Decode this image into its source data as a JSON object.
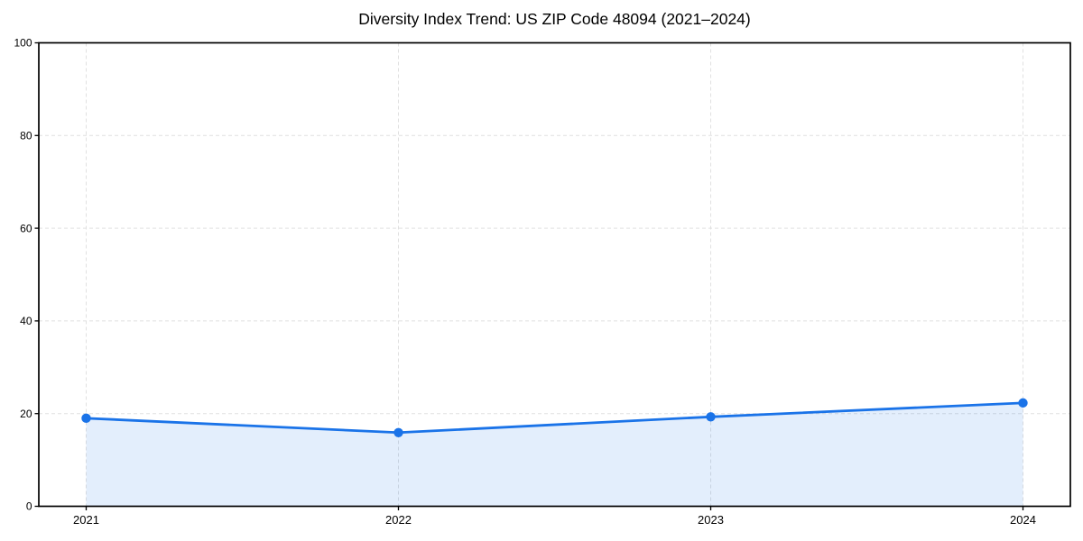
{
  "chart_data": {
    "type": "area",
    "title": "Diversity Index Trend: US ZIP Code 48094 (2021–2024)",
    "categories": [
      "2021",
      "2022",
      "2023",
      "2024"
    ],
    "series": [
      {
        "name": "Diversity Index",
        "values": [
          19.0,
          15.9,
          19.3,
          22.3
        ]
      }
    ],
    "xlabel": "",
    "ylabel": "",
    "ylim": [
      0,
      100
    ],
    "yticks": [
      0,
      20,
      40,
      60,
      80,
      100
    ],
    "grid": true,
    "grid_style": "dashed",
    "legend": "none",
    "marker": "circle",
    "colors": {
      "line": "#1a73e8",
      "marker": "#1a73e8",
      "fill": "rgba(26,115,232,0.12)",
      "grid": "#e0e0e0",
      "spine": "#000000",
      "text": "#000000",
      "background": "#ffffff"
    }
  }
}
